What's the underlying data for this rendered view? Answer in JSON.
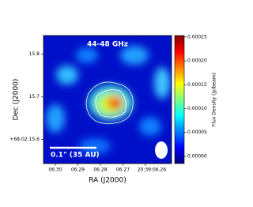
{
  "chart_data": {
    "type": "image",
    "title": "44-48 GHz",
    "xlabel": "RA (J2000)",
    "ylabel": "Dec (J2000)",
    "colorbar_label": "Flux Density (Jy/beam)",
    "scalebar_label": "0.1\" (35 AU)",
    "xlim": [
      6.30526,
      6.2484
    ],
    "xticks": [
      {
        "value": 6.3,
        "label": "06.30"
      },
      {
        "value": 6.29,
        "label": "06.29"
      },
      {
        "value": 6.28,
        "label": "06.28"
      },
      {
        "value": 6.27,
        "label": "06.27"
      },
      {
        "value": 6.26,
        "label": "20:39:06.26"
      }
    ],
    "ylim": [
      15.544,
      15.843
    ],
    "yticks": [
      15.8,
      15.7,
      {
        "value": 15.6,
        "label": "+68:02:15.6"
      }
    ],
    "clim": [
      -1.5e-05,
      0.000253
    ],
    "cticks": [
      {
        "value": 0.00025,
        "label": "0.00025"
      },
      {
        "value": 0.0002,
        "label": "0.00020"
      },
      {
        "value": 0.00015,
        "label": "0.00015"
      },
      {
        "value": 0.0001,
        "label": "0.00010"
      },
      {
        "value": 5e-05,
        "label": "0.00005"
      },
      {
        "value": 0,
        "label": "0.00000"
      }
    ],
    "colormap": [
      "#00007f",
      "#0000ff",
      "#007fff",
      "#00ffff",
      "#7fff7f",
      "#ffff00",
      "#ff7f00",
      "#ff0000",
      "#7f0000"
    ]
  }
}
